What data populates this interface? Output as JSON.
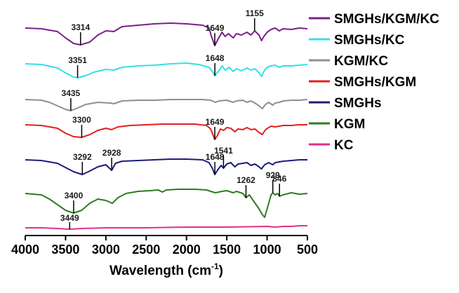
{
  "chart_data": {
    "type": "line",
    "title": "",
    "xlabel_main": "Wavelength (cm",
    "xlabel_sup": "-1",
    "xlabel_close": ")",
    "ylabel": "",
    "xlim": [
      4000,
      500
    ],
    "x_ticks": [
      "4000",
      "3500",
      "3000",
      "2500",
      "2000",
      "1500",
      "1000",
      "500"
    ],
    "grid": false,
    "legend_position": "top-right",
    "series": [
      {
        "name": "SMGHs/KGM/KC",
        "color": "#7b1f8a",
        "points": [
          [
            4000,
            8
          ],
          [
            3800,
            9
          ],
          [
            3600,
            13
          ],
          [
            3500,
            22
          ],
          [
            3400,
            30
          ],
          [
            3314,
            32
          ],
          [
            3200,
            28
          ],
          [
            3100,
            18
          ],
          [
            3000,
            12
          ],
          [
            2900,
            13
          ],
          [
            2800,
            6
          ],
          [
            2600,
            4
          ],
          [
            2400,
            2
          ],
          [
            2200,
            1
          ],
          [
            2000,
            2
          ],
          [
            1800,
            4
          ],
          [
            1720,
            8
          ],
          [
            1690,
            20
          ],
          [
            1649,
            33
          ],
          [
            1600,
            22
          ],
          [
            1560,
            14
          ],
          [
            1520,
            20
          ],
          [
            1480,
            16
          ],
          [
            1420,
            22
          ],
          [
            1380,
            16
          ],
          [
            1320,
            18
          ],
          [
            1250,
            14
          ],
          [
            1200,
            18
          ],
          [
            1155,
            12
          ],
          [
            1100,
            18
          ],
          [
            1070,
            26
          ],
          [
            1040,
            20
          ],
          [
            1000,
            14
          ],
          [
            950,
            10
          ],
          [
            900,
            8
          ],
          [
            850,
            12
          ],
          [
            800,
            9
          ],
          [
            700,
            10
          ],
          [
            600,
            8
          ],
          [
            500,
            9
          ]
        ],
        "peaks": [
          {
            "x": 3314,
            "label": "3314"
          },
          {
            "x": 1649,
            "label": "1649"
          },
          {
            "x": 1155,
            "label": "1155"
          }
        ]
      },
      {
        "name": "SMGHs/KC",
        "color": "#33e0e6",
        "points": [
          [
            4000,
            3
          ],
          [
            3800,
            4
          ],
          [
            3600,
            9
          ],
          [
            3500,
            16
          ],
          [
            3400,
            22
          ],
          [
            3351,
            23
          ],
          [
            3250,
            20
          ],
          [
            3150,
            15
          ],
          [
            3000,
            11
          ],
          [
            2900,
            12
          ],
          [
            2800,
            8
          ],
          [
            2600,
            6
          ],
          [
            2400,
            5
          ],
          [
            2200,
            3
          ],
          [
            2000,
            2
          ],
          [
            1850,
            4
          ],
          [
            1720,
            8
          ],
          [
            1680,
            14
          ],
          [
            1648,
            20
          ],
          [
            1600,
            13
          ],
          [
            1560,
            6
          ],
          [
            1520,
            12
          ],
          [
            1470,
            8
          ],
          [
            1420,
            14
          ],
          [
            1380,
            10
          ],
          [
            1320,
            13
          ],
          [
            1250,
            9
          ],
          [
            1200,
            12
          ],
          [
            1150,
            10
          ],
          [
            1100,
            16
          ],
          [
            1070,
            21
          ],
          [
            1030,
            12
          ],
          [
            1000,
            8
          ],
          [
            950,
            6
          ],
          [
            900,
            5
          ],
          [
            850,
            8
          ],
          [
            800,
            6
          ],
          [
            700,
            6
          ],
          [
            600,
            5
          ],
          [
            500,
            4
          ]
        ],
        "peaks": [
          {
            "x": 3351,
            "label": "3351"
          },
          {
            "x": 1648,
            "label": "1648"
          }
        ]
      },
      {
        "name": "KGM/KC",
        "color": "#8f8f8f",
        "points": [
          [
            4000,
            2
          ],
          [
            3800,
            3
          ],
          [
            3700,
            6
          ],
          [
            3600,
            11
          ],
          [
            3500,
            16
          ],
          [
            3435,
            18
          ],
          [
            3350,
            14
          ],
          [
            3250,
            9
          ],
          [
            3100,
            6
          ],
          [
            2950,
            7
          ],
          [
            2900,
            8
          ],
          [
            2800,
            4
          ],
          [
            2600,
            3
          ],
          [
            2400,
            3
          ],
          [
            2200,
            2
          ],
          [
            2000,
            2
          ],
          [
            1800,
            2
          ],
          [
            1700,
            3
          ],
          [
            1640,
            6
          ],
          [
            1600,
            4
          ],
          [
            1500,
            3
          ],
          [
            1420,
            6
          ],
          [
            1380,
            4
          ],
          [
            1300,
            3
          ],
          [
            1250,
            6
          ],
          [
            1200,
            4
          ],
          [
            1150,
            7
          ],
          [
            1100,
            11
          ],
          [
            1060,
            15
          ],
          [
            1020,
            9
          ],
          [
            980,
            6
          ],
          [
            930,
            10
          ],
          [
            900,
            7
          ],
          [
            850,
            6
          ],
          [
            800,
            4
          ],
          [
            700,
            3
          ],
          [
            600,
            3
          ],
          [
            500,
            2
          ]
        ],
        "peaks": [
          {
            "x": 3435,
            "label": "3435"
          }
        ]
      },
      {
        "name": "SMGHs/KGM",
        "color": "#e02020",
        "points": [
          [
            4000,
            2
          ],
          [
            3800,
            3
          ],
          [
            3600,
            7
          ],
          [
            3500,
            14
          ],
          [
            3400,
            19
          ],
          [
            3300,
            20
          ],
          [
            3200,
            16
          ],
          [
            3100,
            10
          ],
          [
            3000,
            7
          ],
          [
            2930,
            9
          ],
          [
            2850,
            5
          ],
          [
            2700,
            3
          ],
          [
            2500,
            2
          ],
          [
            2300,
            1
          ],
          [
            2100,
            1
          ],
          [
            1900,
            1
          ],
          [
            1750,
            3
          ],
          [
            1700,
            8
          ],
          [
            1649,
            23
          ],
          [
            1620,
            18
          ],
          [
            1580,
            8
          ],
          [
            1540,
            10
          ],
          [
            1500,
            6
          ],
          [
            1450,
            7
          ],
          [
            1400,
            12
          ],
          [
            1360,
            8
          ],
          [
            1300,
            9
          ],
          [
            1250,
            6
          ],
          [
            1200,
            9
          ],
          [
            1150,
            8
          ],
          [
            1100,
            13
          ],
          [
            1060,
            16
          ],
          [
            1020,
            9
          ],
          [
            980,
            6
          ],
          [
            950,
            4
          ],
          [
            900,
            5
          ],
          [
            850,
            4
          ],
          [
            800,
            3
          ],
          [
            700,
            3
          ],
          [
            600,
            2
          ],
          [
            500,
            2
          ]
        ],
        "peaks": [
          {
            "x": 3300,
            "label": "3300"
          },
          {
            "x": 1649,
            "label": "1649"
          }
        ]
      },
      {
        "name": "SMGHs",
        "color": "#1c1c7a",
        "points": [
          [
            4000,
            2
          ],
          [
            3800,
            3
          ],
          [
            3600,
            7
          ],
          [
            3500,
            13
          ],
          [
            3400,
            19
          ],
          [
            3292,
            23
          ],
          [
            3200,
            18
          ],
          [
            3100,
            12
          ],
          [
            3000,
            9
          ],
          [
            2928,
            17
          ],
          [
            2880,
            7
          ],
          [
            2800,
            4
          ],
          [
            2600,
            3
          ],
          [
            2400,
            2
          ],
          [
            2200,
            1
          ],
          [
            2000,
            1
          ],
          [
            1800,
            2
          ],
          [
            1720,
            6
          ],
          [
            1680,
            14
          ],
          [
            1648,
            23
          ],
          [
            1610,
            16
          ],
          [
            1570,
            10
          ],
          [
            1541,
            14
          ],
          [
            1500,
            8
          ],
          [
            1450,
            6
          ],
          [
            1400,
            12
          ],
          [
            1360,
            8
          ],
          [
            1300,
            7
          ],
          [
            1250,
            6
          ],
          [
            1200,
            10
          ],
          [
            1150,
            8
          ],
          [
            1100,
            12
          ],
          [
            1070,
            15
          ],
          [
            1030,
            9
          ],
          [
            980,
            6
          ],
          [
            930,
            9
          ],
          [
            900,
            6
          ],
          [
            850,
            5
          ],
          [
            800,
            4
          ],
          [
            700,
            3
          ],
          [
            600,
            2
          ],
          [
            500,
            2
          ]
        ],
        "peaks": [
          {
            "x": 3292,
            "label": "3292"
          },
          {
            "x": 2928,
            "label": "2928"
          },
          {
            "x": 1648,
            "label": "1648"
          },
          {
            "x": 1541,
            "label": "1541"
          }
        ]
      },
      {
        "name": "KGM",
        "color": "#2e7d1e",
        "points": [
          [
            4000,
            6
          ],
          [
            3800,
            8
          ],
          [
            3700,
            14
          ],
          [
            3600,
            22
          ],
          [
            3500,
            30
          ],
          [
            3400,
            34
          ],
          [
            3300,
            30
          ],
          [
            3200,
            20
          ],
          [
            3100,
            14
          ],
          [
            3000,
            16
          ],
          [
            2920,
            20
          ],
          [
            2850,
            12
          ],
          [
            2750,
            6
          ],
          [
            2600,
            3
          ],
          [
            2450,
            2
          ],
          [
            2350,
            1
          ],
          [
            2300,
            4
          ],
          [
            2250,
            1
          ],
          [
            2100,
            0
          ],
          [
            1900,
            0
          ],
          [
            1750,
            1
          ],
          [
            1700,
            3
          ],
          [
            1640,
            5
          ],
          [
            1560,
            3
          ],
          [
            1500,
            2
          ],
          [
            1420,
            5
          ],
          [
            1380,
            3
          ],
          [
            1300,
            6
          ],
          [
            1262,
            12
          ],
          [
            1220,
            8
          ],
          [
            1160,
            18
          ],
          [
            1100,
            28
          ],
          [
            1060,
            36
          ],
          [
            1030,
            40
          ],
          [
            1000,
            28
          ],
          [
            970,
            16
          ],
          [
            950,
            8
          ],
          [
            929,
            5
          ],
          [
            900,
            8
          ],
          [
            870,
            6
          ],
          [
            846,
            10
          ],
          [
            800,
            8
          ],
          [
            700,
            5
          ],
          [
            600,
            7
          ],
          [
            500,
            6
          ]
        ],
        "peaks": [
          {
            "x": 3400,
            "label": "3400"
          },
          {
            "x": 1262,
            "label": "1262"
          },
          {
            "x": 929,
            "label": "929"
          },
          {
            "x": 846,
            "label": "846"
          }
        ]
      },
      {
        "name": "KC",
        "color": "#e0308a",
        "points": [
          [
            4000,
            3
          ],
          [
            3800,
            3
          ],
          [
            3600,
            4
          ],
          [
            3449,
            5
          ],
          [
            3300,
            4
          ],
          [
            3000,
            3
          ],
          [
            2500,
            3
          ],
          [
            2000,
            2
          ],
          [
            1500,
            2
          ],
          [
            1000,
            1
          ],
          [
            900,
            2
          ],
          [
            800,
            1
          ],
          [
            700,
            1
          ],
          [
            600,
            0
          ],
          [
            500,
            0
          ]
        ],
        "peaks": [
          {
            "x": 3449,
            "label": "3449"
          }
        ]
      }
    ]
  }
}
